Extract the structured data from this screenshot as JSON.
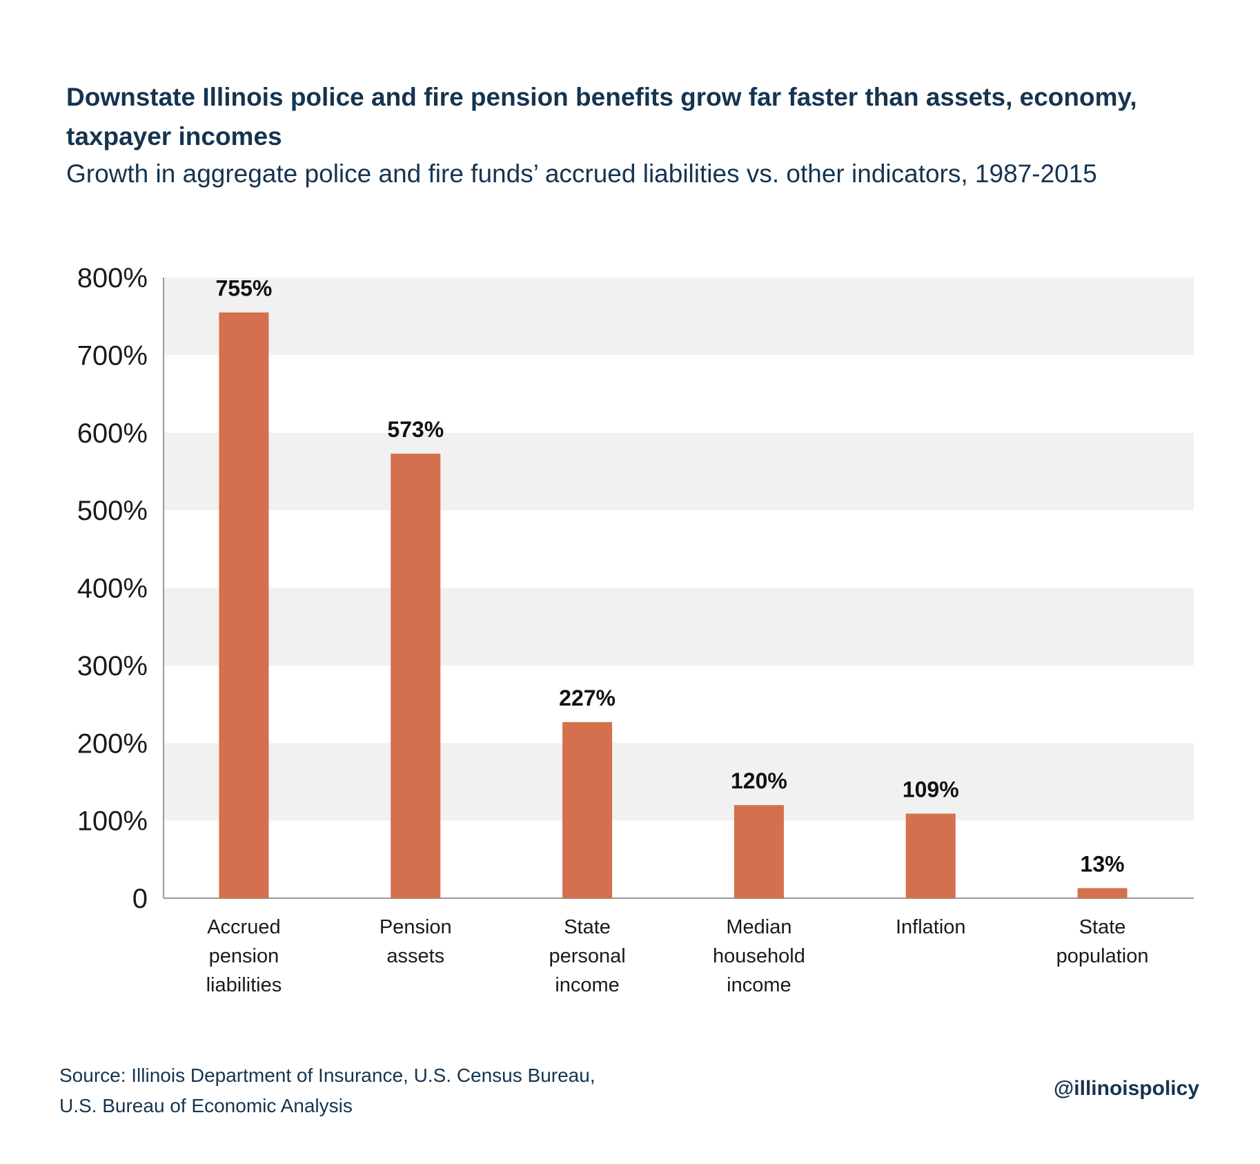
{
  "title": "Downstate Illinois police and fire pension benefits grow far faster than assets, economy, taxpayer incomes",
  "subtitle": "Growth in aggregate police and fire funds’ accrued liabilities vs. other indicators, 1987-2015",
  "source": {
    "line1": "Source: Illinois Department of Insurance, U.S. Census Bureau,",
    "line2": "U.S. Bureau of Economic Analysis"
  },
  "handle": "@illinoispolicy",
  "colors": {
    "bar": "#d4704d",
    "band": "#f1f1f1",
    "text": "#153450",
    "axis": "#999999"
  },
  "chart_data": {
    "type": "bar",
    "title": "Downstate Illinois police and fire pension benefits grow far faster than assets, economy, taxpayer incomes",
    "subtitle": "Growth in aggregate police and fire funds’ accrued liabilities vs. other indicators, 1987-2015",
    "categories": [
      [
        "Accrued",
        "pension",
        "liabilities"
      ],
      [
        "Pension",
        "assets"
      ],
      [
        "State",
        "personal",
        "income"
      ],
      [
        "Median",
        "household",
        "income"
      ],
      [
        "Inflation"
      ],
      [
        "State",
        "population"
      ]
    ],
    "values": [
      755,
      573,
      227,
      120,
      109,
      13
    ],
    "value_labels": [
      "755%",
      "573%",
      "227%",
      "120%",
      "109%",
      "13%"
    ],
    "yticks": [
      "0",
      "100%",
      "200%",
      "300%",
      "400%",
      "500%",
      "600%",
      "700%",
      "800%"
    ],
    "ytick_values": [
      0,
      100,
      200,
      300,
      400,
      500,
      600,
      700,
      800
    ],
    "ylim": [
      0,
      800
    ],
    "xlabel": "",
    "ylabel": "",
    "grid": "alternating horizontal bands",
    "legend": "none"
  }
}
